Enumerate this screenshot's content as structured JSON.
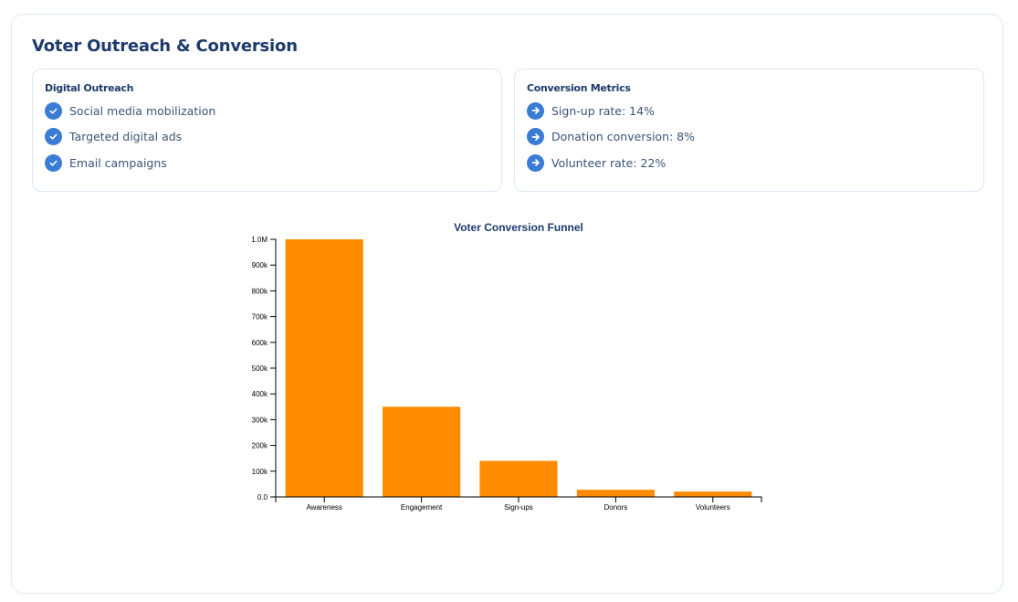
{
  "page": {
    "title": "Voter Outreach & Conversion"
  },
  "panels": {
    "digital_outreach": {
      "heading": "Digital Outreach",
      "icon": "check-circle-icon",
      "items": [
        "Social media mobilization",
        "Targeted digital ads",
        "Email campaigns"
      ]
    },
    "conversion_metrics": {
      "heading": "Conversion Metrics",
      "icon": "arrow-right-circle-icon",
      "items": [
        "Sign-up rate: 14%",
        "Donation conversion: 8%",
        "Volunteer rate: 22%"
      ]
    }
  },
  "colors": {
    "accent": "#3a7bd5",
    "bar": "#ff8c00",
    "heading": "#1d3b6b",
    "border": "#dce9f8"
  },
  "chart_data": {
    "type": "bar",
    "title": "Voter Conversion Funnel",
    "xlabel": "",
    "ylabel": "",
    "categories": [
      "Awareness",
      "Engagement",
      "Sign-ups",
      "Donors",
      "Volunteers"
    ],
    "values": [
      1000000,
      350000,
      140000,
      28000,
      21000
    ],
    "ylim": [
      0,
      1000000
    ],
    "yticks": [
      0,
      100000,
      200000,
      300000,
      400000,
      500000,
      600000,
      700000,
      800000,
      900000,
      1000000
    ],
    "ytick_labels": [
      "0.0",
      "100k",
      "200k",
      "300k",
      "400k",
      "500k",
      "600k",
      "700k",
      "800k",
      "900k",
      "1.0M"
    ],
    "grid": false,
    "legend": "none"
  }
}
